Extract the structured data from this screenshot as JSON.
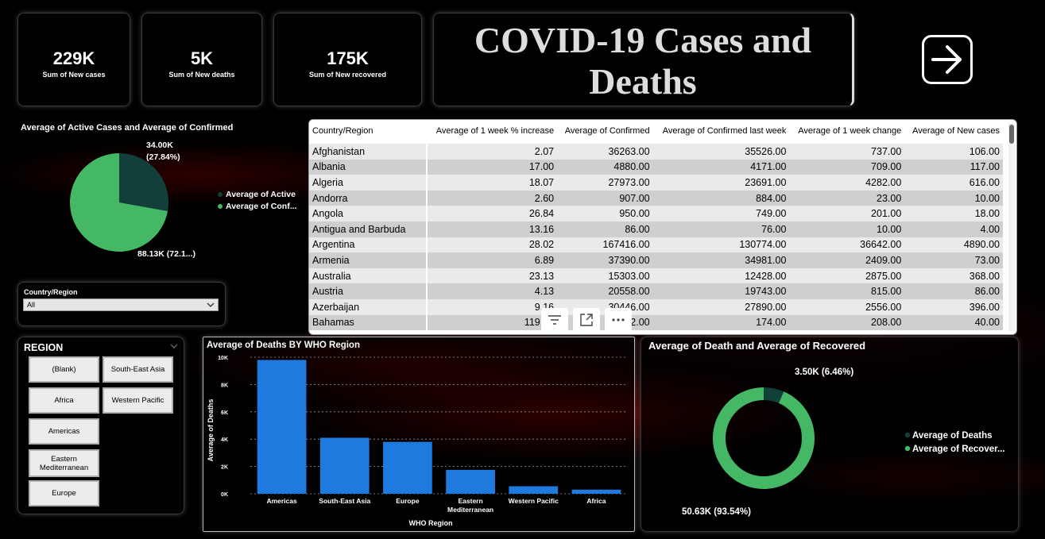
{
  "kpis": [
    {
      "value": "229K",
      "label": "Sum of New cases"
    },
    {
      "value": "5K",
      "label": "Sum of New deaths"
    },
    {
      "value": "175K",
      "label": "Sum of New recovered"
    }
  ],
  "header": {
    "title": "COVID-19 Cases and Deaths",
    "nav_icon": "arrow-right-icon"
  },
  "pie1": {
    "title": "Average of Active Cases and Average of Confirmed",
    "label_top": "34.00K",
    "label_top_pct": "(27.84%)",
    "label_bottom": "88.13K (72.1...)",
    "legend": [
      "Average of Active",
      "Average of Conf..."
    ],
    "colors": [
      "#123f3a",
      "#45b866"
    ]
  },
  "slicer": {
    "label": "Country/Region",
    "value": "All"
  },
  "region": {
    "title": "REGION",
    "buttons": [
      "(Blank)",
      "South-East Asia",
      "Africa",
      "Western Pacific",
      "Americas",
      "Eastern Mediterranean",
      "Europe"
    ]
  },
  "table": {
    "columns": [
      "Country/Region",
      "Average of 1 week % increase",
      "Average of Confirmed",
      "Average of Confirmed last week",
      "Average of 1 week change",
      "Average of New cases"
    ],
    "rows": [
      [
        "Afghanistan",
        "2.07",
        "36263.00",
        "35526.00",
        "737.00",
        "106.00"
      ],
      [
        "Albania",
        "17.00",
        "4880.00",
        "4171.00",
        "709.00",
        "117.00"
      ],
      [
        "Algeria",
        "18.07",
        "27973.00",
        "23691.00",
        "4282.00",
        "616.00"
      ],
      [
        "Andorra",
        "2.60",
        "907.00",
        "884.00",
        "23.00",
        "10.00"
      ],
      [
        "Angola",
        "26.84",
        "950.00",
        "749.00",
        "201.00",
        "18.00"
      ],
      [
        "Antigua and Barbuda",
        "13.16",
        "86.00",
        "76.00",
        "10.00",
        "4.00"
      ],
      [
        "Argentina",
        "28.02",
        "167416.00",
        "130774.00",
        "36642.00",
        "4890.00"
      ],
      [
        "Armenia",
        "6.89",
        "37390.00",
        "34981.00",
        "2409.00",
        "73.00"
      ],
      [
        "Australia",
        "23.13",
        "15303.00",
        "12428.00",
        "2875.00",
        "368.00"
      ],
      [
        "Austria",
        "4.13",
        "20558.00",
        "19743.00",
        "815.00",
        "86.00"
      ],
      [
        "Azerbaijan",
        "9.16",
        "30446.00",
        "27890.00",
        "2556.00",
        "396.00"
      ],
      [
        "Bahamas",
        "119.54",
        "382.00",
        "174.00",
        "208.00",
        "40.00"
      ]
    ]
  },
  "chart_data": [
    {
      "type": "bar",
      "title": "Average of Deaths BY WHO Region",
      "xlabel": "WHO Region",
      "ylabel": "Average of Deaths",
      "categories": [
        "Americas",
        "South-East Asia",
        "Europe",
        "Eastern Mediterranean",
        "Western Pacific",
        "Africa"
      ],
      "values": [
        9800,
        4100,
        3800,
        1750,
        550,
        300
      ],
      "ylim": [
        0,
        10000
      ],
      "yticks": [
        0,
        2000,
        4000,
        6000,
        8000,
        10000
      ],
      "ytick_labels": [
        "0K",
        "2K",
        "4K",
        "6K",
        "8K",
        "10K"
      ],
      "grid": true,
      "color": "#1f7ae0"
    },
    {
      "type": "pie",
      "title": "Average of Death and Average of Recovered",
      "labels": [
        "Average of Deaths",
        "Average of Recover..."
      ],
      "values": [
        3500,
        50630
      ],
      "data_labels": [
        "3.50K (6.46%)",
        "50.63K (93.54%)"
      ],
      "colors": [
        "#123f3a",
        "#45b866"
      ],
      "donut": true,
      "legend": "right"
    }
  ]
}
